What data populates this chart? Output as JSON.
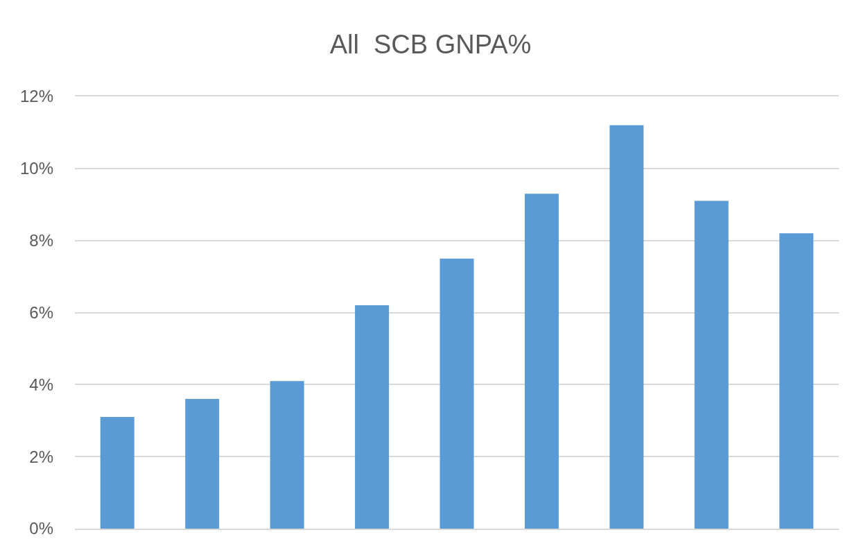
{
  "chart_data": {
    "type": "bar",
    "title": "All  SCB GNPA%",
    "categories": [
      null,
      null,
      null,
      null,
      null,
      null,
      null,
      null,
      null
    ],
    "values": [
      3.1,
      3.6,
      4.1,
      6.2,
      7.5,
      9.3,
      11.2,
      9.1,
      8.2
    ],
    "color": "#5b9bd5",
    "ylim": [
      0,
      12
    ],
    "yticks": [
      {
        "value": 0,
        "label": "0%"
      },
      {
        "value": 2,
        "label": "2%"
      },
      {
        "value": 4,
        "label": "4%"
      },
      {
        "value": 6,
        "label": "6%"
      },
      {
        "value": 8,
        "label": "8%"
      },
      {
        "value": 10,
        "label": "10%"
      },
      {
        "value": 12,
        "label": "12%"
      }
    ],
    "grid": "y"
  }
}
